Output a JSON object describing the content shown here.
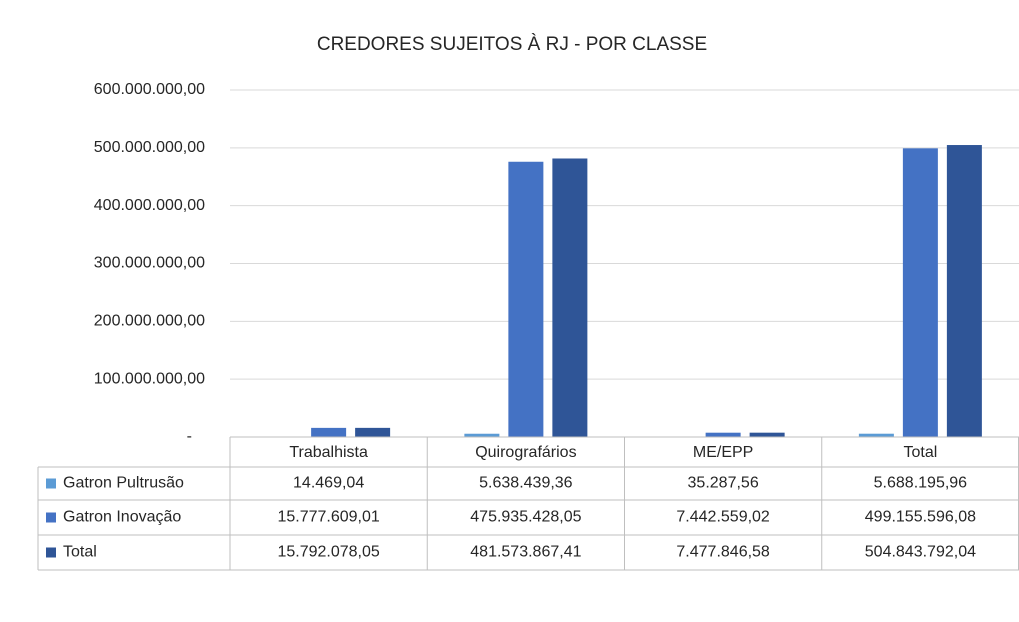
{
  "chart_data": {
    "type": "bar",
    "title": "CREDORES SUJEITOS À RJ - POR CLASSE",
    "categories": [
      "Trabalhista",
      "Quirografários",
      "ME/EPP",
      "Total"
    ],
    "series": [
      {
        "name": "Gatron Pultrusão",
        "color": "#5b9bd5",
        "values": [
          14469.04,
          5638439.36,
          35287.56,
          5688195.96
        ],
        "value_labels": [
          "14.469,04",
          "5.638.439,36",
          "35.287,56",
          "5.688.195,96"
        ]
      },
      {
        "name": "Gatron Inovação",
        "color": "#4472c4",
        "values": [
          15777609.01,
          475935428.05,
          7442559.02,
          499155596.08
        ],
        "value_labels": [
          "15.777.609,01",
          "475.935.428,05",
          "7.442.559,02",
          "499.155.596,08"
        ]
      },
      {
        "name": "Total",
        "color": "#2f5597",
        "values": [
          15792078.05,
          481573867.41,
          7477846.58,
          504843792.04
        ],
        "value_labels": [
          "15.792.078,05",
          "481.573.867,41",
          "7.477.846,58",
          "504.843.792,04"
        ]
      }
    ],
    "ylim": [
      0,
      600000000
    ],
    "yticks": [
      {
        "value": 0,
        "label": "-"
      },
      {
        "value": 100000000,
        "label": "100.000.000,00"
      },
      {
        "value": 200000000,
        "label": "200.000.000,00"
      },
      {
        "value": 300000000,
        "label": "300.000.000,00"
      },
      {
        "value": 400000000,
        "label": "400.000.000,00"
      },
      {
        "value": 500000000,
        "label": "500.000.000,00"
      },
      {
        "value": 600000000,
        "label": "600.000.000,00"
      }
    ],
    "grid": true
  }
}
